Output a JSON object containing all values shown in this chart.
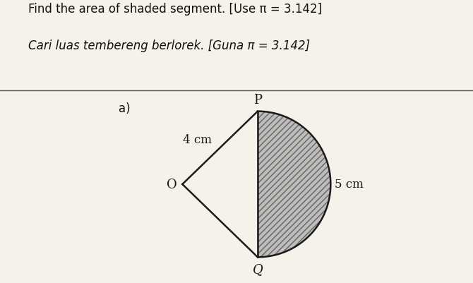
{
  "title_line1": "Find the area of shaded segment. [Use π = 3.142]",
  "title_line2": "Cari luas tembereng berlorek. [Guna π = 3.142]",
  "part_label": "a)",
  "label_O": "O",
  "label_P": "P",
  "label_Q": "Q",
  "label_4cm": "4 cm",
  "label_5cm": "5 cm",
  "bg_color": "#f0ece4",
  "paper_color": "#f5f2ec",
  "shading_color": "#b0b0b0",
  "shading_alpha": 0.55,
  "line_color": "#1a1a1a",
  "O": [
    0.0,
    0.0
  ],
  "P": [
    1.6,
    1.55
  ],
  "Q": [
    1.6,
    -1.55
  ],
  "figsize": [
    6.7,
    4.02
  ],
  "dpi": 100
}
